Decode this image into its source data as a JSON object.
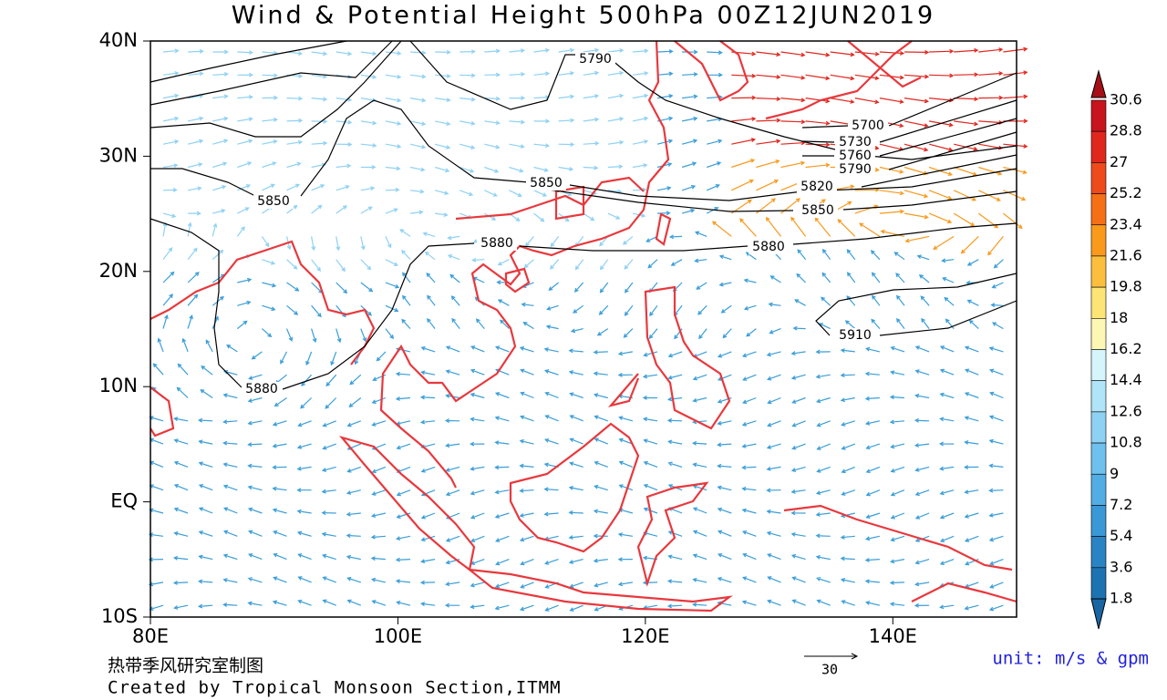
{
  "title": "Wind & Potential Height 500hPa  00Z12JUN2019",
  "axes": {
    "y_labels": [
      "40N",
      "30N",
      "20N",
      "10N",
      "EQ",
      "10S"
    ],
    "x_labels": [
      "80E",
      "100E",
      "120E",
      "140E"
    ]
  },
  "contour_labels": [
    "5790",
    "5850",
    "5850",
    "5880",
    "5700",
    "5730",
    "5760",
    "5790",
    "5820",
    "5850",
    "5880",
    "5880",
    "5910"
  ],
  "colorbar": {
    "labels": [
      "30.6",
      "28.8",
      "27",
      "25.2",
      "23.4",
      "21.6",
      "19.8",
      "18",
      "16.2",
      "14.4",
      "12.6",
      "10.8",
      "9",
      "7.2",
      "5.4",
      "3.6",
      "1.8"
    ]
  },
  "reference_vector": "30",
  "unit": "unit: m/s & gpm",
  "footer": {
    "chinese": "热带季风研究室制图",
    "credit": "Created by Tropical Monsoon Section,ITMM"
  }
}
